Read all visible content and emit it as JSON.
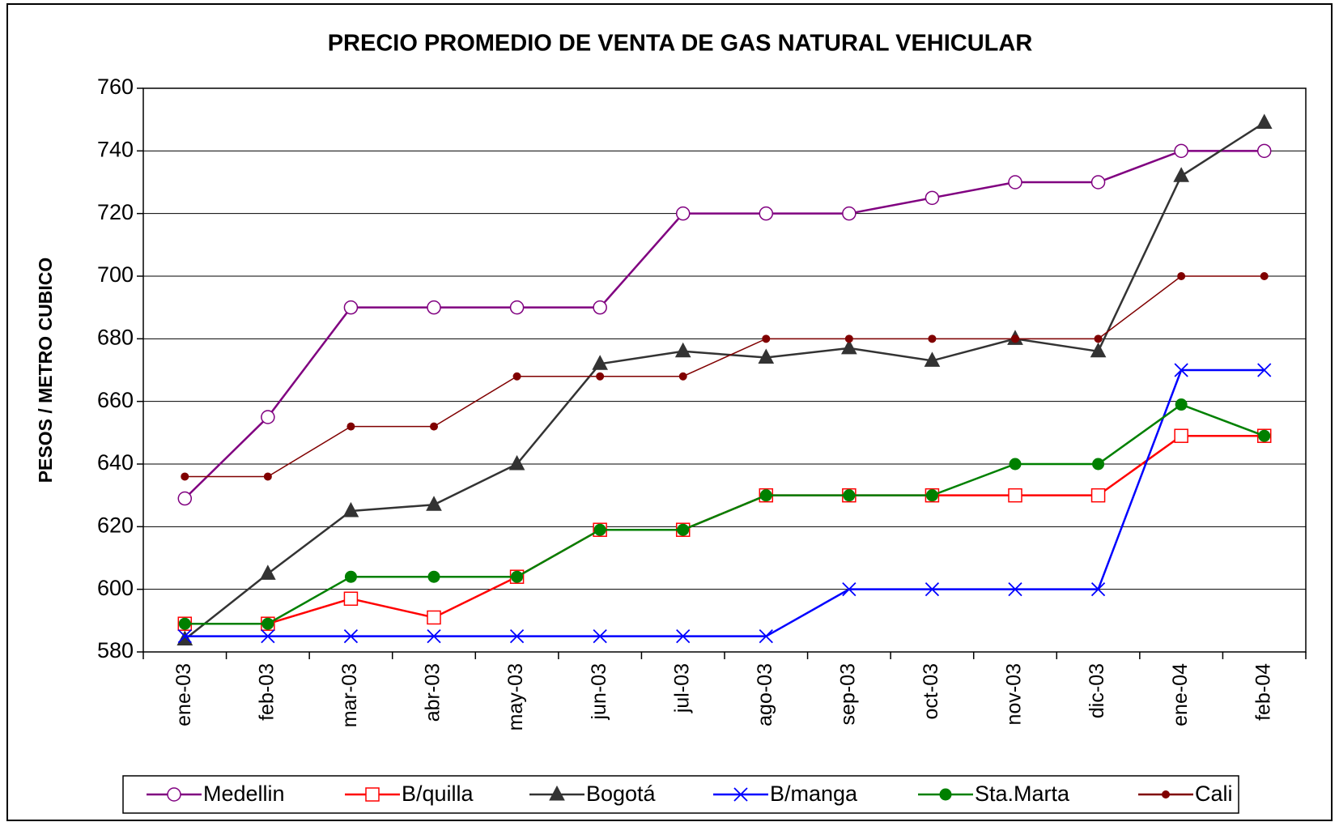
{
  "chart_data": {
    "type": "line",
    "title": "PRECIO PROMEDIO DE VENTA DE GAS NATURAL VEHICULAR",
    "y_label": "PESOS / METRO CUBICO",
    "categories": [
      "ene-03",
      "feb-03",
      "mar-03",
      "abr-03",
      "may-03",
      "jun-03",
      "jul-03",
      "ago-03",
      "sep-03",
      "oct-03",
      "nov-03",
      "dic-03",
      "ene-04",
      "feb-04"
    ],
    "series": [
      {
        "name": "Medellin",
        "color": "#800080",
        "marker": "open-circle",
        "values": [
          629,
          655,
          690,
          690,
          690,
          690,
          720,
          720,
          720,
          725,
          730,
          730,
          740,
          740
        ]
      },
      {
        "name": "B/quilla",
        "color": "#ff0000",
        "marker": "open-square",
        "values": [
          589,
          589,
          597,
          591,
          604,
          619,
          619,
          630,
          630,
          630,
          630,
          630,
          649,
          649
        ]
      },
      {
        "name": "Bogotá",
        "color": "#333333",
        "marker": "triangle",
        "values": [
          584,
          605,
          625,
          627,
          640,
          672,
          676,
          674,
          677,
          673,
          680,
          676,
          732,
          749
        ]
      },
      {
        "name": "B/manga",
        "color": "#0000ff",
        "marker": "x",
        "values": [
          585,
          585,
          585,
          585,
          585,
          585,
          585,
          585,
          600,
          600,
          600,
          600,
          670,
          670
        ]
      },
      {
        "name": "Sta.Marta",
        "color": "#008000",
        "marker": "filled-circle",
        "values": [
          589,
          589,
          604,
          604,
          604,
          619,
          619,
          630,
          630,
          630,
          640,
          640,
          659,
          649
        ]
      },
      {
        "name": "Cali",
        "color": "#800000",
        "marker": "dot",
        "values": [
          636,
          636,
          652,
          652,
          668,
          668,
          668,
          680,
          680,
          680,
          680,
          680,
          700,
          700
        ]
      }
    ],
    "ylim": [
      580,
      760
    ],
    "yticks": [
      580,
      600,
      620,
      640,
      660,
      680,
      700,
      720,
      740,
      760
    ],
    "grid": true,
    "legend": "bottom"
  }
}
